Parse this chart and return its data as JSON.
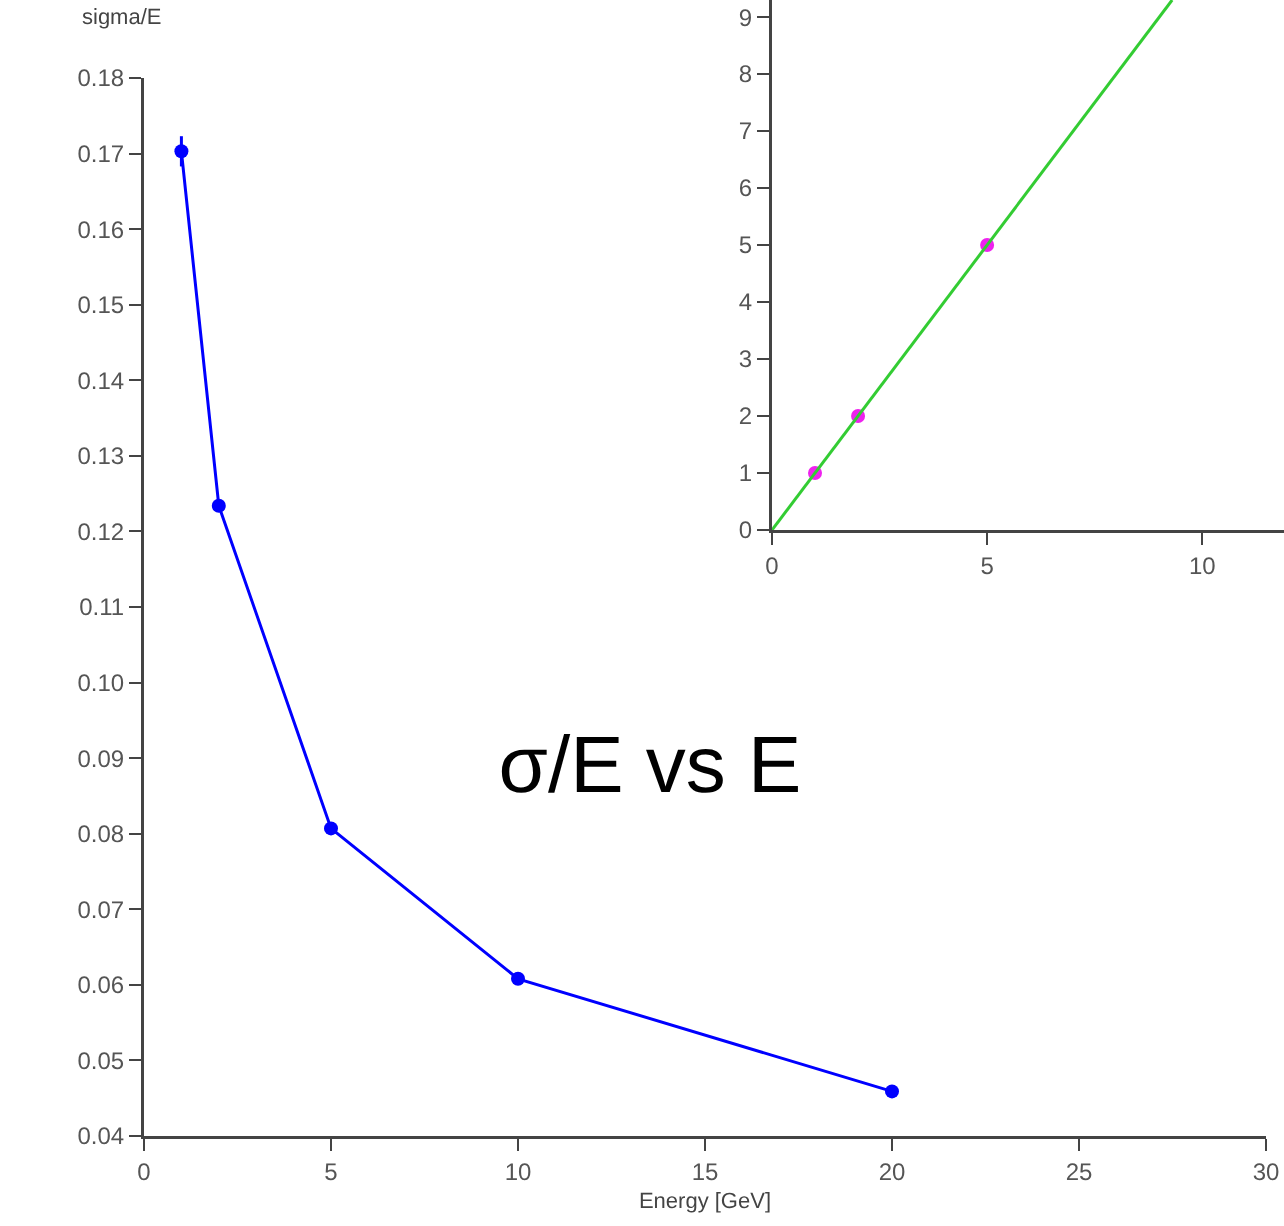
{
  "chart_data": [
    {
      "type": "line",
      "title": "σ/E vs E",
      "xlabel": "Energy [GeV]",
      "ylabel": "sigma/E",
      "marker": "circle",
      "line_style": "solid",
      "x": [
        1,
        2,
        5,
        10,
        20
      ],
      "values": [
        0.1703,
        0.1234,
        0.0807,
        0.0608,
        0.0459
      ],
      "color": "#0000ff",
      "errors": [
        0.002,
        null,
        null,
        null,
        null
      ],
      "xlim": [
        0,
        30
      ],
      "xticks": [
        0,
        5,
        10,
        15,
        20,
        25,
        30
      ],
      "ylim": [
        0.04,
        0.18
      ],
      "yticks": [
        {
          "value": 0.04,
          "label": "0.04"
        },
        {
          "value": 0.05,
          "label": "0.05"
        },
        {
          "value": 0.06,
          "label": "0.06"
        },
        {
          "value": 0.07,
          "label": "0.07"
        },
        {
          "value": 0.08,
          "label": "0.08"
        },
        {
          "value": 0.09,
          "label": "0.09"
        },
        {
          "value": 0.1,
          "label": "0.10"
        },
        {
          "value": 0.11,
          "label": "0.11"
        },
        {
          "value": 0.12,
          "label": "0.12"
        },
        {
          "value": 0.13,
          "label": "0.13"
        },
        {
          "value": 0.14,
          "label": "0.14"
        },
        {
          "value": 0.15,
          "label": "0.15"
        },
        {
          "value": 0.16,
          "label": "0.16"
        },
        {
          "value": 0.17,
          "label": "0.17"
        },
        {
          "value": 0.18,
          "label": "0.18"
        }
      ]
    },
    {
      "type": "scatter",
      "xlim": [
        0,
        11.9
      ],
      "xticks": [
        0,
        5,
        10
      ],
      "ylim": [
        0,
        9.3
      ],
      "yticks": [
        0,
        1,
        2,
        3,
        4,
        5,
        6,
        7,
        8,
        9
      ],
      "series": [
        {
          "marker": "circle",
          "color": "#ee22ee",
          "x": [
            1,
            2,
            5
          ],
          "values": [
            1,
            2,
            5
          ]
        },
        {
          "type": "line",
          "marker": "none",
          "color": "#33cc33",
          "x": [
            0,
            9.3
          ],
          "values": [
            0,
            9.3
          ]
        }
      ]
    }
  ]
}
